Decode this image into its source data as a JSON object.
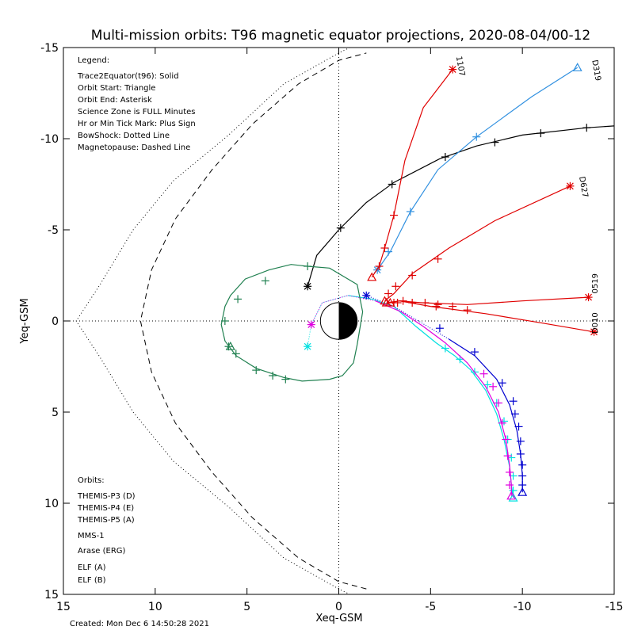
{
  "chart_data": {
    "type": "scatter",
    "title": "Multi-mission orbits: T96 magnetic equator projections, 2020-08-04/00-12",
    "xlabel": "Xeq-GSM",
    "ylabel": "Yeq-GSM",
    "xlim": [
      15,
      -15
    ],
    "ylim": [
      -15,
      15
    ],
    "xticks": [
      "15",
      "10",
      "5",
      "0",
      "-5",
      "-10",
      "-15"
    ],
    "yticks": [
      "-15",
      "-10",
      "-5",
      "0",
      "5",
      "10",
      "15"
    ],
    "grid": false,
    "reference_lines": {
      "x": 0,
      "y": 0,
      "style": "dotted"
    },
    "legend": {
      "heading": "Legend:",
      "items": [
        "Trace2Equator(t96): Solid",
        "Orbit Start: Triangle",
        "Orbit End: Asterisk",
        "Science Zone is FULL Minutes",
        "Hr or Min Tick Mark: Plus Sign",
        "BowShock: Dotted Line",
        "Magnetopause: Dashed Line"
      ]
    },
    "orbits_legend": {
      "heading": "Orbits:",
      "items": [
        {
          "label": "THEMIS-P3 (D)",
          "color": "#00e0e0"
        },
        {
          "label": "THEMIS-P4 (E)",
          "color": "#0000d0"
        },
        {
          "label": "THEMIS-P5 (A)",
          "color": "#e000e0"
        },
        {
          "label": "MMS-1",
          "color": "#000000"
        },
        {
          "label": "Arase (ERG)",
          "color": "#208050"
        },
        {
          "label": "ELF (A)",
          "color": "#3090e0"
        },
        {
          "label": "ELF (B)",
          "color": "#e00000"
        }
      ]
    },
    "footer": "Created: Mon Dec  6 14:50:28 2021",
    "earth": {
      "radius": 1
    },
    "bowshock": [
      [
        -2.0,
        -15.7
      ],
      [
        0,
        -14.7
      ],
      [
        3,
        -13.0
      ],
      [
        6,
        -10.2
      ],
      [
        9,
        -7.7
      ],
      [
        11.2,
        -5.0
      ],
      [
        13.0,
        -2.0
      ],
      [
        14.3,
        0
      ],
      [
        13.0,
        2.0
      ],
      [
        11.2,
        5.0
      ],
      [
        9,
        7.7
      ],
      [
        6,
        10.2
      ],
      [
        3,
        13.0
      ],
      [
        0,
        14.7
      ],
      [
        -2.0,
        15.7
      ]
    ],
    "magnetopause": [
      [
        -1.5,
        14.7
      ],
      [
        0,
        14.3
      ],
      [
        2.2,
        13.0
      ],
      [
        4.7,
        10.8
      ],
      [
        6.9,
        8.3
      ],
      [
        8.9,
        5.6
      ],
      [
        10.2,
        2.8
      ],
      [
        10.8,
        0
      ],
      [
        10.2,
        -2.8
      ],
      [
        8.9,
        -5.6
      ],
      [
        6.9,
        -8.3
      ],
      [
        4.7,
        -10.8
      ],
      [
        2.2,
        -13.0
      ],
      [
        0,
        -14.3
      ],
      [
        -1.5,
        -14.7
      ]
    ],
    "series": [
      {
        "name": "THEMIS-P3 (D)",
        "color": "#00e0e0",
        "points": [
          [
            1.7,
            1.4
          ],
          [
            1.5,
            0.2
          ],
          [
            0.9,
            -1.0
          ],
          [
            -0.5,
            -1.4
          ],
          [
            -1.8,
            -1.2
          ],
          [
            -3.0,
            -0.8
          ],
          [
            -4.2,
            0.3
          ],
          [
            -5.3,
            1.2
          ],
          [
            -6.3,
            1.9
          ],
          [
            -7.2,
            2.7
          ],
          [
            -8.0,
            3.8
          ],
          [
            -8.6,
            5.1
          ],
          [
            -9.0,
            6.5
          ],
          [
            -9.3,
            8.0
          ],
          [
            -9.4,
            9.0
          ],
          [
            -9.5,
            9.7
          ]
        ],
        "start": [
          -9.5,
          9.7
        ],
        "end": [
          1.7,
          1.4
        ],
        "end_style": "dotted",
        "ticks": [
          [
            -5.8,
            1.5
          ],
          [
            -6.6,
            2.1
          ],
          [
            -7.4,
            2.8
          ],
          [
            -8.1,
            3.5
          ],
          [
            -8.6,
            4.5
          ],
          [
            -9.0,
            5.5
          ],
          [
            -9.2,
            6.5
          ],
          [
            -9.4,
            7.5
          ],
          [
            -9.5,
            8.5
          ],
          [
            -9.5,
            9.3
          ]
        ]
      },
      {
        "name": "THEMIS-P4 (E)",
        "color": "#0000d0",
        "points": [
          [
            -1.5,
            -1.4
          ],
          [
            -3.0,
            -0.8
          ],
          [
            -4.5,
            0.1
          ],
          [
            -6.0,
            1.0
          ],
          [
            -7.4,
            1.9
          ],
          [
            -8.6,
            3.2
          ],
          [
            -9.3,
            4.6
          ],
          [
            -9.7,
            6.0
          ],
          [
            -9.9,
            7.3
          ],
          [
            -10.0,
            8.5
          ],
          [
            -10.0,
            9.4
          ]
        ],
        "start": [
          -10.0,
          9.4
        ],
        "end": [
          -1.5,
          -1.4
        ],
        "end_style": "dotted",
        "ticks": [
          [
            -5.5,
            0.4
          ],
          [
            -7.4,
            1.7
          ],
          [
            -8.9,
            3.4
          ],
          [
            -9.5,
            4.4
          ],
          [
            -9.6,
            5.1
          ],
          [
            -9.8,
            5.8
          ],
          [
            -9.9,
            6.6
          ],
          [
            -9.9,
            7.3
          ],
          [
            -10.0,
            7.9
          ],
          [
            -10.0,
            8.5
          ],
          [
            -10.0,
            9.0
          ]
        ]
      },
      {
        "name": "THEMIS-P5 (A)",
        "color": "#e000e0",
        "points": [
          [
            1.5,
            0.2
          ],
          [
            0.9,
            -1.0
          ],
          [
            -0.5,
            -1.4
          ],
          [
            -2.0,
            -1.1
          ],
          [
            -3.4,
            -0.5
          ],
          [
            -4.6,
            0.3
          ],
          [
            -5.8,
            1.2
          ],
          [
            -7.0,
            2.3
          ],
          [
            -8.0,
            3.6
          ],
          [
            -8.7,
            5.0
          ],
          [
            -9.1,
            6.5
          ],
          [
            -9.3,
            7.9
          ],
          [
            -9.4,
            9.0
          ],
          [
            -9.4,
            9.6
          ]
        ],
        "start": [
          -9.4,
          9.6
        ],
        "end": [
          1.5,
          0.2
        ],
        "end_style": "dotted",
        "ticks": [
          [
            -7.9,
            2.9
          ],
          [
            -8.4,
            3.6
          ],
          [
            -8.7,
            4.5
          ],
          [
            -8.9,
            5.6
          ],
          [
            -9.1,
            6.5
          ],
          [
            -9.2,
            7.4
          ],
          [
            -9.3,
            8.3
          ],
          [
            -9.3,
            9.0
          ]
        ]
      },
      {
        "name": "MMS-1",
        "color": "#000000",
        "points": [
          [
            1.7,
            -1.9
          ],
          [
            1.2,
            -3.6
          ],
          [
            0,
            -5.0
          ],
          [
            -1.5,
            -6.5
          ],
          [
            -3.0,
            -7.6
          ],
          [
            -5.5,
            -8.9
          ],
          [
            -7.5,
            -9.6
          ],
          [
            -10.0,
            -10.2
          ],
          [
            -13.5,
            -10.6
          ],
          [
            -15,
            -10.7
          ]
        ],
        "start": null,
        "end": [
          1.7,
          -1.9
        ],
        "ticks": [
          [
            -0.1,
            -5.1
          ],
          [
            -2.9,
            -7.5
          ],
          [
            -5.8,
            -9.0
          ],
          [
            -8.5,
            -9.8
          ],
          [
            -11.0,
            -10.3
          ],
          [
            -13.5,
            -10.6
          ]
        ]
      },
      {
        "name": "Arase (ERG)",
        "color": "#208050",
        "points": [
          [
            1.7,
            -3.0
          ],
          [
            0.5,
            -2.9
          ],
          [
            -1.0,
            -2.0
          ],
          [
            -1.3,
            -0.5
          ],
          [
            -1.0,
            1.3
          ],
          [
            -0.8,
            2.3
          ],
          [
            -0.2,
            3.0
          ],
          [
            0.5,
            3.2
          ],
          [
            2.0,
            3.3
          ],
          [
            3.0,
            3.1
          ],
          [
            4.5,
            2.6
          ],
          [
            5.6,
            1.9
          ],
          [
            6.2,
            1.1
          ],
          [
            6.4,
            0.2
          ],
          [
            6.2,
            -0.8
          ],
          [
            5.9,
            -1.4
          ],
          [
            5.1,
            -2.3
          ],
          [
            3.8,
            -2.8
          ],
          [
            2.6,
            -3.1
          ],
          [
            1.7,
            -3.0
          ]
        ],
        "start": [
          5.9,
          1.4
        ],
        "end": null,
        "ticks": [
          [
            1.7,
            -3.0
          ],
          [
            4.0,
            -2.2
          ],
          [
            5.5,
            -1.2
          ],
          [
            6.2,
            0
          ],
          [
            6.0,
            1.4
          ],
          [
            5.6,
            1.8
          ],
          [
            4.5,
            2.7
          ],
          [
            3.6,
            3.0
          ],
          [
            2.9,
            3.2
          ]
        ]
      },
      {
        "name": "ELF (A)",
        "color": "#3090e0",
        "points": [
          [
            -2.1,
            -2.8
          ],
          [
            -2.8,
            -3.8
          ],
          [
            -3.9,
            -6.0
          ],
          [
            -5.4,
            -8.3
          ],
          [
            -7.5,
            -10.1
          ],
          [
            -10.5,
            -12.3
          ],
          [
            -13.0,
            -13.9
          ]
        ],
        "start": [
          -13.0,
          -13.9
        ],
        "end": [
          -2.1,
          -2.8
        ],
        "ticks": [
          [
            -2.7,
            -3.8
          ],
          [
            -3.9,
            -6.0
          ],
          [
            -7.5,
            -10.1
          ]
        ],
        "label": "D319",
        "label_pos": [
          -13.8,
          -14.3
        ],
        "label_rotate": 80
      },
      {
        "name": "ELF (B)",
        "color": "#e00000",
        "points": [
          [
            -1.8,
            -2.4
          ],
          [
            -2.2,
            -3.0
          ],
          [
            -2.5,
            -4.0
          ],
          [
            -3.0,
            -5.8
          ],
          [
            -3.6,
            -8.8
          ],
          [
            -4.6,
            -11.7
          ],
          [
            -6.2,
            -13.8
          ]
        ],
        "start": [
          -1.8,
          -2.4
        ],
        "end": [
          -6.2,
          -13.8
        ],
        "ticks": [
          [
            -2.2,
            -3.0
          ],
          [
            -2.5,
            -4.0
          ],
          [
            -3.0,
            -5.8
          ]
        ],
        "label": "1107",
        "label_pos": [
          -6.4,
          -14.5
        ],
        "label_rotate": 80
      },
      {
        "name": "ELF (B)",
        "color": "#e00000",
        "points": [
          [
            -2.5,
            -1.1
          ],
          [
            -3.0,
            -1.5
          ],
          [
            -4.0,
            -2.6
          ],
          [
            -6.0,
            -4.0
          ],
          [
            -8.5,
            -5.5
          ],
          [
            -12.6,
            -7.4
          ]
        ],
        "start": [
          -2.5,
          -1.1
        ],
        "end": [
          -12.6,
          -7.4
        ],
        "ticks": [
          [
            -2.7,
            -1.5
          ],
          [
            -3.1,
            -1.9
          ],
          [
            -4.0,
            -2.5
          ],
          [
            -5.4,
            -3.4
          ]
        ],
        "label": "D627",
        "label_pos": [
          -13.1,
          -7.9
        ],
        "label_rotate": 80
      },
      {
        "name": "ELF (B)",
        "color": "#e00000",
        "points": [
          [
            -2.6,
            -1.0
          ],
          [
            -3.3,
            -1.1
          ],
          [
            -4.5,
            -1.0
          ],
          [
            -7.0,
            -0.9
          ],
          [
            -10.0,
            -1.1
          ],
          [
            -13.6,
            -1.3
          ]
        ],
        "start": [
          -2.6,
          -1.0
        ],
        "end": [
          -13.6,
          -1.3
        ],
        "ticks": [
          [
            -3.0,
            -1.0
          ],
          [
            -3.5,
            -1.1
          ],
          [
            -4.0,
            -1.0
          ],
          [
            -4.7,
            -1.0
          ],
          [
            -5.4,
            -0.9
          ],
          [
            -6.2,
            -0.8
          ]
        ],
        "label": "0519",
        "label_pos": [
          -14.1,
          -1.5
        ],
        "label_rotate": -90
      },
      {
        "name": "ELF (B)",
        "color": "#e00000",
        "points": [
          [
            -2.8,
            -1.0
          ],
          [
            -3.3,
            -1.1
          ],
          [
            -5.0,
            -0.8
          ],
          [
            -8.0,
            -0.4
          ],
          [
            -11.0,
            0.1
          ],
          [
            -13.9,
            0.6
          ]
        ],
        "start": [
          -2.8,
          -1.0
        ],
        "end": [
          -13.9,
          0.6
        ],
        "ticks": [
          [
            -3.2,
            -1.0
          ],
          [
            -5.3,
            -0.8
          ],
          [
            -7.0,
            -0.6
          ]
        ],
        "label": "D010",
        "label_pos": [
          -14.1,
          0.7
        ],
        "label_rotate": -90
      }
    ]
  }
}
